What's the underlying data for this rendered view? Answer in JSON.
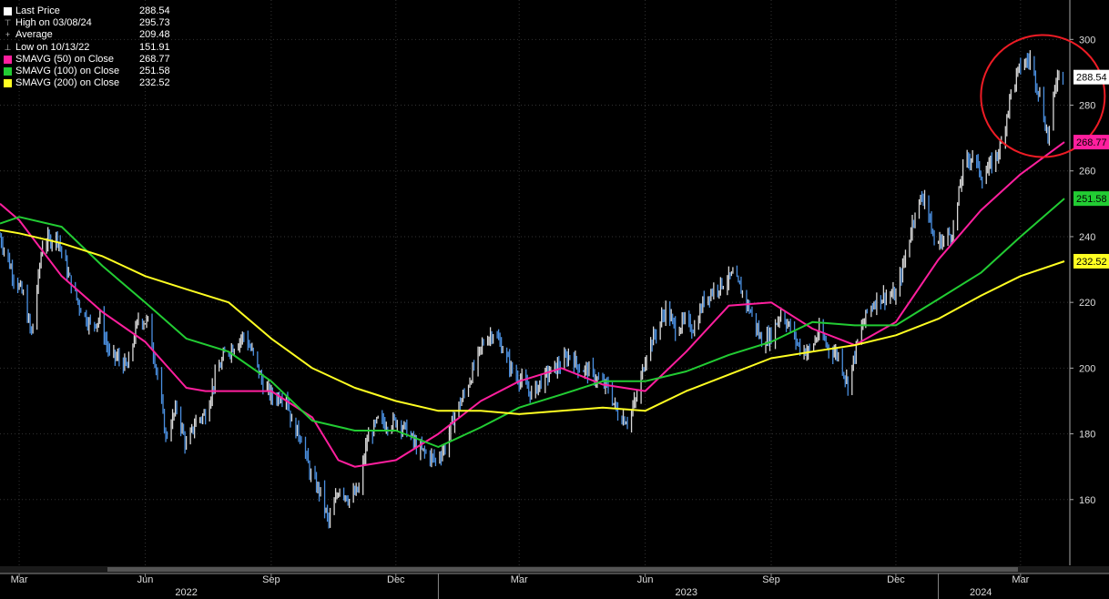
{
  "legend": [
    {
      "label": "Last Price",
      "value": "288.54",
      "marker": "square",
      "color": "#ffffff"
    },
    {
      "label": "High on 03/08/24",
      "value": "295.73",
      "marker": "high",
      "color": "#bbbbbb"
    },
    {
      "label": "Average",
      "value": "209.48",
      "marker": "avg",
      "color": "#bbbbbb"
    },
    {
      "label": "Low on 10/13/22",
      "value": "151.91",
      "marker": "low",
      "color": "#bbbbbb"
    },
    {
      "label": "SMAVG (50)  on Close",
      "value": "268.77",
      "marker": "square",
      "color": "#ff1f9e"
    },
    {
      "label": "SMAVG (100)  on Close",
      "value": "251.58",
      "marker": "square",
      "color": "#22cc33"
    },
    {
      "label": "SMAVG (200)  on Close",
      "value": "232.52",
      "marker": "square",
      "color": "#ffff22"
    }
  ],
  "price_tags": [
    {
      "value": "288.54",
      "color": "#ffffff",
      "text_color": "#000000"
    },
    {
      "value": "268.77",
      "color": "#ff1f9e",
      "text_color": "#000000"
    },
    {
      "value": "251.58",
      "color": "#22cc33",
      "text_color": "#000000"
    },
    {
      "value": "232.52",
      "color": "#ffff22",
      "text_color": "#000000"
    }
  ],
  "chart_data": {
    "type": "line",
    "background": "#000000",
    "grid": true,
    "x_range": [
      "2022-02-15",
      "2024-04-06"
    ],
    "ylim": [
      140,
      312
    ],
    "yticks": [
      160,
      180,
      200,
      220,
      240,
      260,
      280,
      300
    ],
    "month_ticks": [
      {
        "date": "2022-03-01",
        "label": "Mar"
      },
      {
        "date": "2022-06-01",
        "label": "Jun"
      },
      {
        "date": "2022-09-01",
        "label": "Sep"
      },
      {
        "date": "2022-12-01",
        "label": "Dec"
      },
      {
        "date": "2023-03-01",
        "label": "Mar"
      },
      {
        "date": "2023-06-01",
        "label": "Jun"
      },
      {
        "date": "2023-09-01",
        "label": "Sep"
      },
      {
        "date": "2023-12-01",
        "label": "Dec"
      },
      {
        "date": "2024-03-01",
        "label": "Mar"
      }
    ],
    "year_labels": [
      {
        "date": "2022-07-01",
        "label": "2022"
      },
      {
        "date": "2023-07-01",
        "label": "2023"
      },
      {
        "date": "2024-02-01",
        "label": "2024"
      }
    ],
    "year_dividers": [
      "2022-01-01",
      "2023-01-01",
      "2024-01-01"
    ],
    "series": [
      {
        "name": "Last Price",
        "color": "#4a8fe0",
        "style": "bars",
        "points": [
          [
            "2022-02-15",
            240
          ],
          [
            "2022-02-25",
            228
          ],
          [
            "2022-03-04",
            222
          ],
          [
            "2022-03-10",
            210
          ],
          [
            "2022-03-18",
            238
          ],
          [
            "2022-03-29",
            240
          ],
          [
            "2022-04-06",
            228
          ],
          [
            "2022-04-14",
            219
          ],
          [
            "2022-04-22",
            213
          ],
          [
            "2022-04-29",
            215
          ],
          [
            "2022-05-06",
            204
          ],
          [
            "2022-05-12",
            203
          ],
          [
            "2022-05-19",
            200
          ],
          [
            "2022-05-27",
            215
          ],
          [
            "2022-06-03",
            214
          ],
          [
            "2022-06-10",
            198
          ],
          [
            "2022-06-16",
            179
          ],
          [
            "2022-06-24",
            188
          ],
          [
            "2022-07-01",
            176
          ],
          [
            "2022-07-08",
            184
          ],
          [
            "2022-07-15",
            186
          ],
          [
            "2022-07-22",
            197
          ],
          [
            "2022-07-29",
            204
          ],
          [
            "2022-08-05",
            207
          ],
          [
            "2022-08-12",
            210
          ],
          [
            "2022-08-19",
            204
          ],
          [
            "2022-08-26",
            195
          ],
          [
            "2022-09-02",
            191
          ],
          [
            "2022-09-12",
            192
          ],
          [
            "2022-09-16",
            183
          ],
          [
            "2022-09-23",
            179
          ],
          [
            "2022-09-30",
            167
          ],
          [
            "2022-10-07",
            162
          ],
          [
            "2022-10-13",
            153
          ],
          [
            "2022-10-21",
            164
          ],
          [
            "2022-10-28",
            160
          ],
          [
            "2022-11-04",
            163
          ],
          [
            "2022-11-10",
            178
          ],
          [
            "2022-11-18",
            184
          ],
          [
            "2022-11-25",
            183
          ],
          [
            "2022-12-02",
            184
          ],
          [
            "2022-12-09",
            181
          ],
          [
            "2022-12-16",
            176
          ],
          [
            "2022-12-23",
            174
          ],
          [
            "2022-12-30",
            172
          ],
          [
            "2023-01-06",
            176
          ],
          [
            "2023-01-13",
            186
          ],
          [
            "2023-01-20",
            192
          ],
          [
            "2023-01-27",
            200
          ],
          [
            "2023-02-03",
            208
          ],
          [
            "2023-02-10",
            211
          ],
          [
            "2023-02-17",
            206
          ],
          [
            "2023-02-24",
            199
          ],
          [
            "2023-03-03",
            196
          ],
          [
            "2023-03-10",
            192
          ],
          [
            "2023-03-17",
            196
          ],
          [
            "2023-03-24",
            199
          ],
          [
            "2023-03-31",
            201
          ],
          [
            "2023-04-07",
            204
          ],
          [
            "2023-04-14",
            200
          ],
          [
            "2023-04-21",
            199
          ],
          [
            "2023-04-28",
            196
          ],
          [
            "2023-05-05",
            194
          ],
          [
            "2023-05-12",
            186
          ],
          [
            "2023-05-19",
            184
          ],
          [
            "2023-05-26",
            191
          ],
          [
            "2023-06-02",
            205
          ],
          [
            "2023-06-09",
            211
          ],
          [
            "2023-06-16",
            218
          ],
          [
            "2023-06-23",
            212
          ],
          [
            "2023-06-30",
            214
          ],
          [
            "2023-07-07",
            212
          ],
          [
            "2023-07-14",
            221
          ],
          [
            "2023-07-21",
            224
          ],
          [
            "2023-07-28",
            226
          ],
          [
            "2023-08-04",
            228
          ],
          [
            "2023-08-11",
            223
          ],
          [
            "2023-08-18",
            216
          ],
          [
            "2023-08-25",
            208
          ],
          [
            "2023-09-01",
            210
          ],
          [
            "2023-09-08",
            217
          ],
          [
            "2023-09-15",
            212
          ],
          [
            "2023-09-22",
            206
          ],
          [
            "2023-09-29",
            205
          ],
          [
            "2023-10-06",
            211
          ],
          [
            "2023-10-13",
            206
          ],
          [
            "2023-10-20",
            204
          ],
          [
            "2023-10-27",
            195
          ],
          [
            "2023-11-03",
            208
          ],
          [
            "2023-11-10",
            217
          ],
          [
            "2023-11-17",
            221
          ],
          [
            "2023-11-24",
            222
          ],
          [
            "2023-12-01",
            222
          ],
          [
            "2023-12-08",
            234
          ],
          [
            "2023-12-15",
            248
          ],
          [
            "2023-12-22",
            253
          ],
          [
            "2023-12-29",
            238
          ],
          [
            "2024-01-05",
            239
          ],
          [
            "2024-01-12",
            242
          ],
          [
            "2024-01-19",
            261
          ],
          [
            "2024-01-26",
            265
          ],
          [
            "2024-02-02",
            258
          ],
          [
            "2024-02-09",
            262
          ],
          [
            "2024-02-16",
            268
          ],
          [
            "2024-02-23",
            284
          ],
          [
            "2024-03-01",
            292
          ],
          [
            "2024-03-08",
            294
          ],
          [
            "2024-03-15",
            283
          ],
          [
            "2024-03-21",
            270
          ],
          [
            "2024-03-28",
            290
          ],
          [
            "2024-04-02",
            288.54
          ]
        ]
      },
      {
        "name": "SMAVG (50)  on Close",
        "color": "#ff1f9e",
        "points": [
          [
            "2022-02-15",
            250
          ],
          [
            "2022-03-01",
            245
          ],
          [
            "2022-04-01",
            228
          ],
          [
            "2022-05-01",
            217
          ],
          [
            "2022-06-01",
            208
          ],
          [
            "2022-07-01",
            194
          ],
          [
            "2022-07-15",
            193
          ],
          [
            "2022-08-01",
            193
          ],
          [
            "2022-09-01",
            193
          ],
          [
            "2022-10-01",
            185
          ],
          [
            "2022-10-20",
            172
          ],
          [
            "2022-11-01",
            170
          ],
          [
            "2022-12-01",
            172
          ],
          [
            "2023-01-01",
            180
          ],
          [
            "2023-02-01",
            190
          ],
          [
            "2023-03-01",
            196
          ],
          [
            "2023-04-01",
            200
          ],
          [
            "2023-05-01",
            195
          ],
          [
            "2023-06-01",
            193
          ],
          [
            "2023-07-01",
            205
          ],
          [
            "2023-08-01",
            219
          ],
          [
            "2023-09-01",
            220
          ],
          [
            "2023-10-01",
            212
          ],
          [
            "2023-11-01",
            207
          ],
          [
            "2023-12-01",
            214
          ],
          [
            "2024-01-01",
            233
          ],
          [
            "2024-02-01",
            248
          ],
          [
            "2024-03-01",
            259
          ],
          [
            "2024-04-02",
            268.77
          ]
        ]
      },
      {
        "name": "SMAVG (100)  on Close",
        "color": "#22cc33",
        "points": [
          [
            "2022-02-15",
            244
          ],
          [
            "2022-03-01",
            246
          ],
          [
            "2022-04-01",
            243
          ],
          [
            "2022-05-01",
            231
          ],
          [
            "2022-06-01",
            220
          ],
          [
            "2022-07-01",
            209
          ],
          [
            "2022-08-01",
            205
          ],
          [
            "2022-09-01",
            196
          ],
          [
            "2022-10-01",
            184
          ],
          [
            "2022-11-01",
            181
          ],
          [
            "2022-12-01",
            181
          ],
          [
            "2023-01-01",
            176
          ],
          [
            "2023-02-01",
            182
          ],
          [
            "2023-03-01",
            188
          ],
          [
            "2023-04-01",
            192
          ],
          [
            "2023-05-01",
            196
          ],
          [
            "2023-06-01",
            196
          ],
          [
            "2023-07-01",
            199
          ],
          [
            "2023-08-01",
            204
          ],
          [
            "2023-09-01",
            208
          ],
          [
            "2023-10-01",
            214
          ],
          [
            "2023-11-01",
            213
          ],
          [
            "2023-12-01",
            213
          ],
          [
            "2024-01-01",
            221
          ],
          [
            "2024-02-01",
            229
          ],
          [
            "2024-03-01",
            240
          ],
          [
            "2024-04-02",
            251.58
          ]
        ]
      },
      {
        "name": "SMAVG (200)  on Close",
        "color": "#ffff22",
        "points": [
          [
            "2022-02-15",
            242
          ],
          [
            "2022-03-01",
            241
          ],
          [
            "2022-04-01",
            238
          ],
          [
            "2022-05-01",
            234
          ],
          [
            "2022-06-01",
            228
          ],
          [
            "2022-07-01",
            224
          ],
          [
            "2022-08-01",
            220
          ],
          [
            "2022-09-01",
            209
          ],
          [
            "2022-10-01",
            200
          ],
          [
            "2022-11-01",
            194
          ],
          [
            "2022-12-01",
            190
          ],
          [
            "2023-01-01",
            187
          ],
          [
            "2023-02-01",
            187
          ],
          [
            "2023-03-01",
            186
          ],
          [
            "2023-04-01",
            187
          ],
          [
            "2023-05-01",
            188
          ],
          [
            "2023-06-01",
            187
          ],
          [
            "2023-07-01",
            193
          ],
          [
            "2023-08-01",
            198
          ],
          [
            "2023-09-01",
            203
          ],
          [
            "2023-10-01",
            205
          ],
          [
            "2023-11-01",
            207
          ],
          [
            "2023-12-01",
            210
          ],
          [
            "2024-01-01",
            215
          ],
          [
            "2024-02-01",
            222
          ],
          [
            "2024-03-01",
            228
          ],
          [
            "2024-04-02",
            232.52
          ]
        ]
      }
    ],
    "annotation": {
      "type": "circle",
      "color": "#ee1c25",
      "center_date": "2024-03-08",
      "center_value": 285
    }
  }
}
